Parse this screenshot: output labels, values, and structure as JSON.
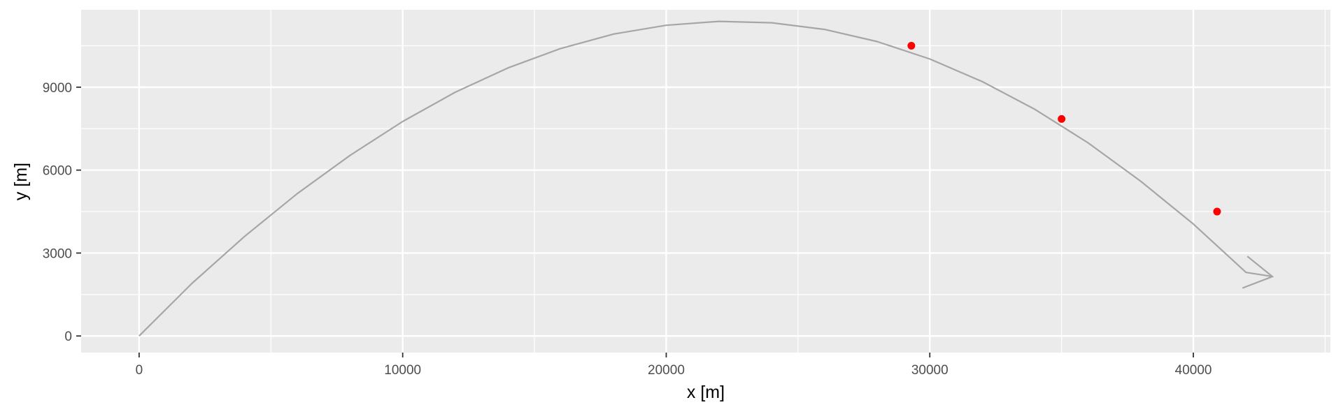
{
  "chart_data": {
    "type": "scatter",
    "xlabel": "x [m]",
    "ylabel": "y [m]",
    "xlim": [
      -2200,
      45200
    ],
    "ylim": [
      -600,
      11800
    ],
    "x_ticks": [
      0,
      10000,
      20000,
      30000,
      40000
    ],
    "x_tick_labels": [
      "0",
      "10000",
      "20000",
      "30000",
      "40000"
    ],
    "y_ticks": [
      0,
      3000,
      6000,
      9000
    ],
    "y_tick_labels": [
      "0",
      "3000",
      "6000",
      "9000"
    ],
    "grid": true,
    "background": "#ebebeb",
    "trajectory": {
      "type": "line",
      "shape": "parabola",
      "color": "#a6a6a6",
      "x": [
        0,
        2000,
        4000,
        6000,
        8000,
        10000,
        12000,
        14000,
        16000,
        18000,
        20000,
        22000,
        24000,
        26000,
        28000,
        30000,
        32000,
        34000,
        36000,
        38000,
        40000,
        42000,
        43000
      ],
      "y": [
        0,
        1900,
        3600,
        5150,
        6530,
        7760,
        8820,
        9700,
        10400,
        10920,
        11240,
        11380,
        11330,
        11090,
        10650,
        10020,
        9200,
        8190,
        6990,
        5600,
        4050,
        2300,
        2150
      ],
      "end_arrow": true
    },
    "points": {
      "type": "scatter",
      "color": "#ff0000",
      "x": [
        29300,
        35000,
        40900
      ],
      "y": [
        10500,
        7850,
        4500
      ]
    }
  }
}
